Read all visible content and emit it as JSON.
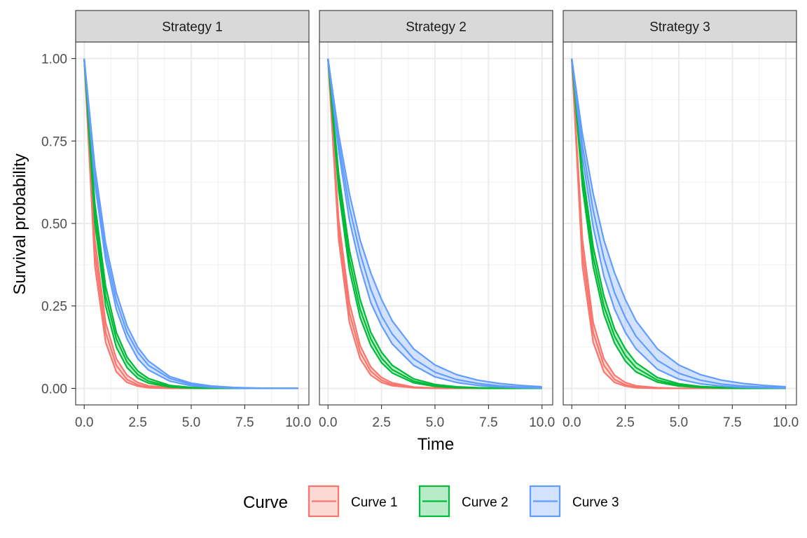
{
  "chart_data": {
    "type": "area",
    "xlabel": "Time",
    "ylabel": "Survival probability",
    "xlim": [
      -0.4,
      10.5
    ],
    "ylim": [
      -0.05,
      1.05
    ],
    "x_ticks": [
      0,
      2.5,
      5,
      7.5,
      10
    ],
    "x_tick_labels": [
      "0.0",
      "2.5",
      "5.0",
      "7.5",
      "10.0"
    ],
    "y_ticks": [
      0,
      0.25,
      0.5,
      0.75,
      1
    ],
    "y_tick_labels": [
      "0.00",
      "0.25",
      "0.50",
      "0.75",
      "1.00"
    ],
    "grid": true,
    "legend": {
      "title": "Curve",
      "position": "bottom",
      "entries": [
        "Curve 1",
        "Curve 2",
        "Curve 3"
      ]
    },
    "colors": {
      "Curve 1": "#F8766D",
      "Curve 2": "#00BA38",
      "Curve 3": "#619CFF"
    },
    "x": [
      0,
      0.5,
      1,
      1.5,
      2,
      2.5,
      3,
      4,
      5,
      6,
      7,
      8,
      9,
      10
    ],
    "panels": [
      {
        "strip": "Strategy 1",
        "series": [
          {
            "name": "Curve 1",
            "lower": [
              1,
              0.37,
              0.14,
              0.05,
              0.018,
              0.007,
              0.002,
              0,
              0,
              0,
              0,
              0,
              0,
              0
            ],
            "mid": [
              1,
              0.41,
              0.17,
              0.07,
              0.027,
              0.011,
              0.004,
              0.001,
              0,
              0,
              0,
              0,
              0,
              0
            ],
            "upper": [
              1,
              0.45,
              0.2,
              0.09,
              0.04,
              0.018,
              0.008,
              0.002,
              0,
              0,
              0,
              0,
              0,
              0
            ]
          },
          {
            "name": "Curve 2",
            "lower": [
              1,
              0.5,
              0.25,
              0.125,
              0.063,
              0.031,
              0.016,
              0.004,
              0.001,
              0,
              0,
              0,
              0,
              0
            ],
            "mid": [
              1,
              0.53,
              0.28,
              0.15,
              0.08,
              0.042,
              0.022,
              0.006,
              0.002,
              0.001,
              0,
              0,
              0,
              0
            ],
            "upper": [
              1,
              0.56,
              0.31,
              0.17,
              0.095,
              0.053,
              0.03,
              0.009,
              0.003,
              0.001,
              0,
              0,
              0,
              0
            ]
          },
          {
            "name": "Curve 3",
            "lower": [
              1,
              0.62,
              0.39,
              0.24,
              0.15,
              0.09,
              0.056,
              0.022,
              0.008,
              0.003,
              0.001,
              0,
              0,
              0
            ],
            "mid": [
              1,
              0.645,
              0.415,
              0.265,
              0.17,
              0.11,
              0.07,
              0.03,
              0.012,
              0.005,
              0.002,
              0.001,
              0,
              0
            ],
            "upper": [
              1,
              0.67,
              0.44,
              0.29,
              0.19,
              0.125,
              0.083,
              0.036,
              0.016,
              0.007,
              0.003,
              0.001,
              0,
              0
            ]
          }
        ]
      },
      {
        "strip": "Strategy 2",
        "series": [
          {
            "name": "Curve 1",
            "lower": [
              1,
              0.45,
              0.2,
              0.09,
              0.04,
              0.018,
              0.008,
              0.002,
              0,
              0,
              0,
              0,
              0,
              0
            ],
            "mid": [
              1,
              0.48,
              0.23,
              0.11,
              0.052,
              0.025,
              0.012,
              0.003,
              0.001,
              0,
              0,
              0,
              0,
              0
            ],
            "upper": [
              1,
              0.51,
              0.26,
              0.13,
              0.065,
              0.033,
              0.017,
              0.004,
              0.001,
              0,
              0,
              0,
              0,
              0
            ]
          },
          {
            "name": "Curve 2",
            "lower": [
              1,
              0.6,
              0.36,
              0.215,
              0.13,
              0.078,
              0.047,
              0.017,
              0.006,
              0.002,
              0.001,
              0,
              0,
              0
            ],
            "mid": [
              1,
              0.62,
              0.39,
              0.24,
              0.15,
              0.092,
              0.057,
              0.022,
              0.008,
              0.003,
              0.001,
              0,
              0,
              0
            ],
            "upper": [
              1,
              0.65,
              0.42,
              0.27,
              0.17,
              0.11,
              0.07,
              0.029,
              0.012,
              0.005,
              0.002,
              0.001,
              0,
              0
            ]
          },
          {
            "name": "Curve 3",
            "lower": [
              1,
              0.72,
              0.51,
              0.37,
              0.26,
              0.19,
              0.135,
              0.07,
              0.035,
              0.018,
              0.009,
              0.005,
              0.002,
              0.001
            ],
            "mid": [
              1,
              0.745,
              0.55,
              0.41,
              0.3,
              0.22,
              0.165,
              0.09,
              0.049,
              0.027,
              0.015,
              0.008,
              0.004,
              0.002
            ],
            "upper": [
              1,
              0.77,
              0.59,
              0.45,
              0.35,
              0.27,
              0.205,
              0.12,
              0.071,
              0.042,
              0.025,
              0.015,
              0.009,
              0.005
            ]
          }
        ]
      },
      {
        "strip": "Strategy 3",
        "series": [
          {
            "name": "Curve 1",
            "lower": [
              1,
              0.37,
              0.14,
              0.05,
              0.018,
              0.007,
              0.002,
              0,
              0,
              0,
              0,
              0,
              0,
              0
            ],
            "mid": [
              1,
              0.41,
              0.17,
              0.07,
              0.027,
              0.011,
              0.004,
              0.001,
              0,
              0,
              0,
              0,
              0,
              0
            ],
            "upper": [
              1,
              0.45,
              0.2,
              0.09,
              0.04,
              0.018,
              0.008,
              0.002,
              0,
              0,
              0,
              0,
              0,
              0
            ]
          },
          {
            "name": "Curve 2",
            "lower": [
              1,
              0.61,
              0.37,
              0.225,
              0.137,
              0.083,
              0.05,
              0.019,
              0.007,
              0.003,
              0.001,
              0,
              0,
              0
            ],
            "mid": [
              1,
              0.63,
              0.4,
              0.25,
              0.158,
              0.1,
              0.063,
              0.025,
              0.01,
              0.004,
              0.002,
              0.001,
              0,
              0
            ],
            "upper": [
              1,
              0.66,
              0.43,
              0.28,
              0.18,
              0.12,
              0.078,
              0.033,
              0.014,
              0.006,
              0.003,
              0.001,
              0,
              0
            ]
          },
          {
            "name": "Curve 3",
            "lower": [
              1,
              0.7,
              0.49,
              0.34,
              0.24,
              0.17,
              0.12,
              0.058,
              0.028,
              0.014,
              0.007,
              0.003,
              0.002,
              0.001
            ],
            "mid": [
              1,
              0.735,
              0.54,
              0.395,
              0.29,
              0.215,
              0.158,
              0.085,
              0.046,
              0.025,
              0.013,
              0.007,
              0.004,
              0.002
            ],
            "upper": [
              1,
              0.77,
              0.59,
              0.45,
              0.35,
              0.27,
              0.205,
              0.12,
              0.071,
              0.042,
              0.025,
              0.015,
              0.009,
              0.005
            ]
          }
        ]
      }
    ]
  }
}
